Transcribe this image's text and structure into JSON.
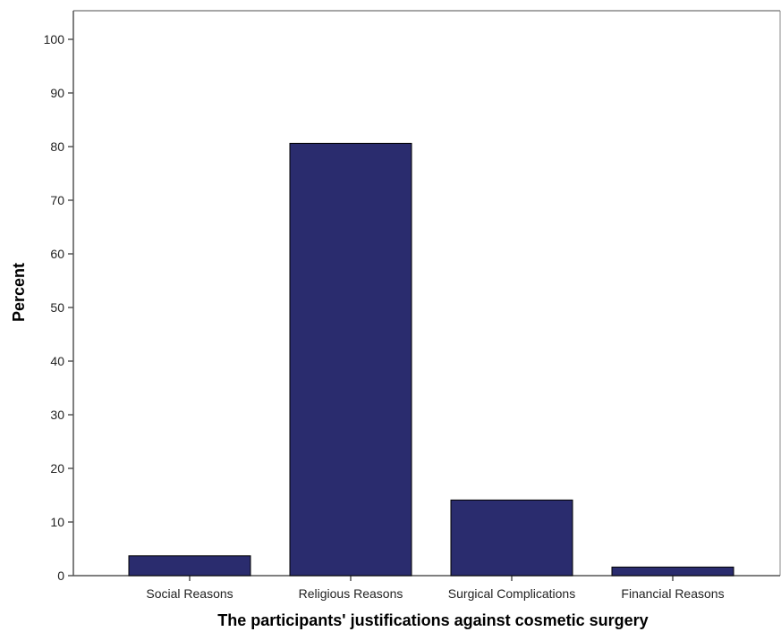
{
  "chart_data": {
    "type": "bar",
    "categories": [
      "Social Reasons",
      "Religious Reasons",
      "Surgical Complications",
      "Financial Reasons"
    ],
    "values": [
      3.7,
      80.6,
      14.1,
      1.6
    ],
    "title": "",
    "xlabel": "The participants' justifications against cosmetic surgery",
    "ylabel": "Percent",
    "ylim": [
      0,
      105
    ],
    "yticks": [
      0,
      10,
      20,
      30,
      40,
      50,
      60,
      70,
      80,
      90,
      100
    ],
    "grid": false,
    "legend": "none",
    "colors": {
      "bar_fill": "#2a2c6e",
      "bar_stroke": "#000000",
      "axis": "#555555",
      "frame": "#888888"
    }
  }
}
